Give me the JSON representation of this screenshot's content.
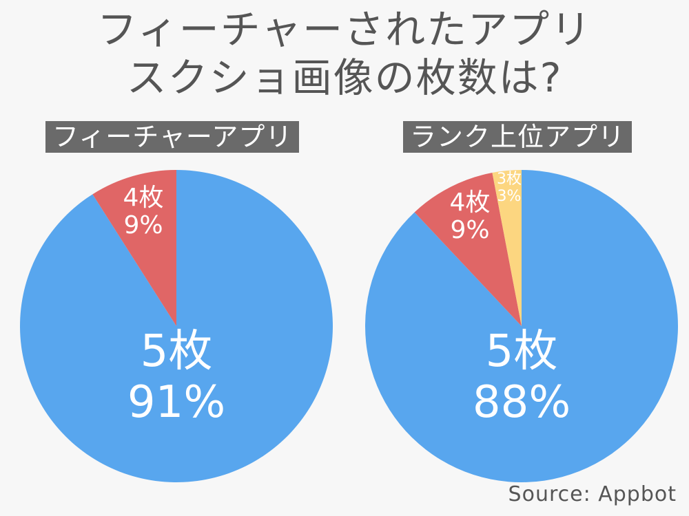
{
  "title_lines": [
    "フィーチャーされたアプリ",
    "スクショ画像の枚数は?"
  ],
  "source": "Source: Appbot",
  "colors": {
    "blue": "#58a6ee",
    "red": "#e06666",
    "yellow": "#fcd680",
    "label_white": "#ffffff",
    "label_yellow": "#ffffff"
  },
  "chart_data": [
    {
      "type": "pie",
      "title": "フィーチャーアプリ",
      "slices": [
        {
          "name": "5枚",
          "value": 91,
          "label": "91%",
          "color": "#58a6ee"
        },
        {
          "name": "4枚",
          "value": 9,
          "label": "9%",
          "color": "#e06666"
        }
      ]
    },
    {
      "type": "pie",
      "title": "ランク上位アプリ",
      "slices": [
        {
          "name": "5枚",
          "value": 88,
          "label": "88%",
          "color": "#58a6ee"
        },
        {
          "name": "4枚",
          "value": 9,
          "label": "9%",
          "color": "#e06666"
        },
        {
          "name": "3枚",
          "value": 3,
          "label": "3%",
          "color": "#fcd680"
        }
      ]
    }
  ]
}
